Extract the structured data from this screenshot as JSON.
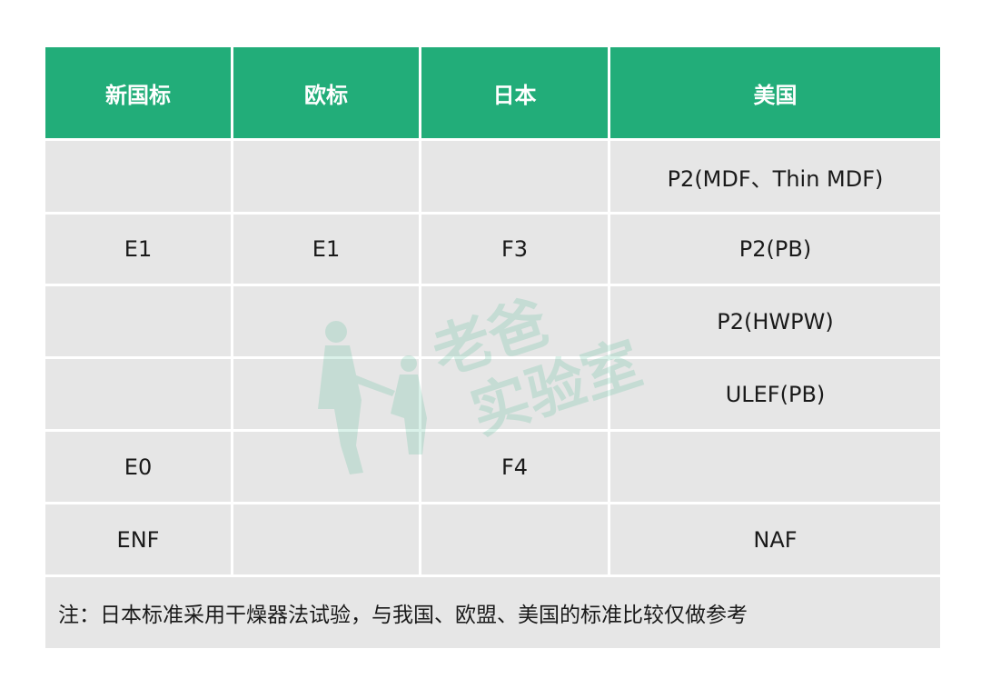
{
  "table": {
    "headers": [
      "新国标",
      "欧标",
      "日本",
      "美国"
    ],
    "rows": [
      [
        "",
        "",
        "",
        "P2(MDF、Thin MDF)"
      ],
      [
        "E1",
        "E1",
        "F3",
        "P2(PB)"
      ],
      [
        "",
        "",
        "",
        "P2(HWPW)"
      ],
      [
        "",
        "",
        "",
        "ULEF(PB)"
      ],
      [
        "E0",
        "",
        "F4",
        ""
      ],
      [
        "ENF",
        "",
        "",
        "NAF"
      ]
    ],
    "note": "注：日本标准采用干燥器法试验，与我国、欧盟、美国的标准比较仅做参考"
  },
  "watermark": {
    "text": "老爸实验室",
    "color": "#22ad79"
  },
  "colors": {
    "header": "#22ad79",
    "cell": "#e6e6e6"
  }
}
